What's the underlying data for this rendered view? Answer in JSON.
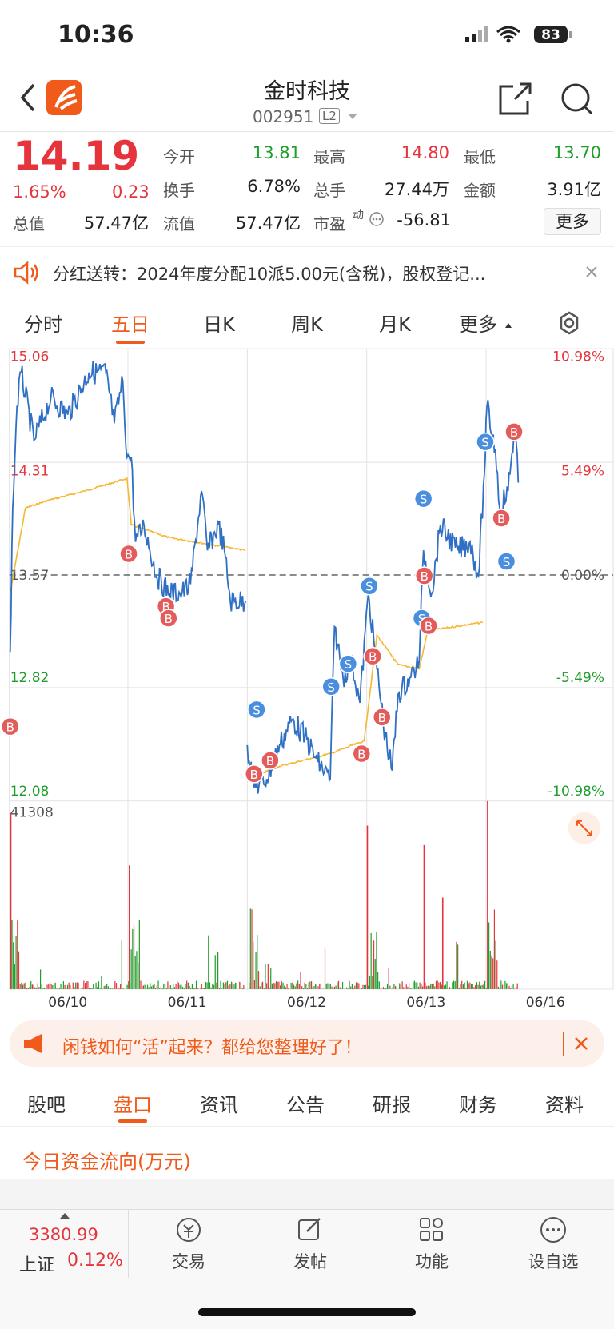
{
  "status": {
    "time": "10:36",
    "battery": "83"
  },
  "header": {
    "title": "金时科技",
    "code": "002951",
    "badge": "L2"
  },
  "quote": {
    "price": "14.19",
    "change_pct": "1.65%",
    "change": "0.23",
    "fields": [
      {
        "label": "今开",
        "value": "13.81"
      },
      {
        "label": "最高",
        "value": "14.80"
      },
      {
        "label": "最低",
        "value": "13.70"
      },
      {
        "label": "换手",
        "value": "6.78%"
      },
      {
        "label": "总手",
        "value": "27.44万"
      },
      {
        "label": "金额",
        "value": "3.91亿"
      },
      {
        "label": "总值",
        "value": "57.47亿"
      },
      {
        "label": "流值",
        "value": "57.47亿"
      },
      {
        "label": "市盈",
        "value": "-56.81"
      }
    ],
    "pe_sup": "动",
    "more": "更多"
  },
  "notice": "分红送转：2024年度分配10派5.00元(含税)，股权登记...",
  "tabs": [
    "分时",
    "五日",
    "日K",
    "周K",
    "月K",
    "更多"
  ],
  "chart": {
    "price_labels": [
      "15.06",
      "14.31",
      "13.57",
      "12.82",
      "12.08"
    ],
    "pct_labels": [
      "10.98%",
      "5.49%",
      "0.00%",
      "-5.49%",
      "-10.98%"
    ],
    "volume_max": "41308",
    "dates": [
      "06/10",
      "06/11",
      "06/12",
      "06/13",
      "06/16"
    ],
    "markers": [
      "B",
      "B",
      "B",
      "B",
      "B",
      "S",
      "B",
      "B",
      "S",
      "S",
      "S",
      "B",
      "B",
      "S",
      "B",
      "S",
      "B",
      "S",
      "B",
      "B",
      "S"
    ]
  },
  "ad": "闲钱如何“活”起来？都给您整理好了！",
  "sub_tabs": [
    "股吧",
    "盘口",
    "资讯",
    "公告",
    "研报",
    "财务",
    "资料"
  ],
  "section_title": "今日资金流向(万元)",
  "bottom_nav": {
    "index_value": "3380.99",
    "index_name": "上证",
    "index_change": "0.12%",
    "items": [
      "交易",
      "发帖",
      "功能",
      "设自选"
    ]
  }
}
